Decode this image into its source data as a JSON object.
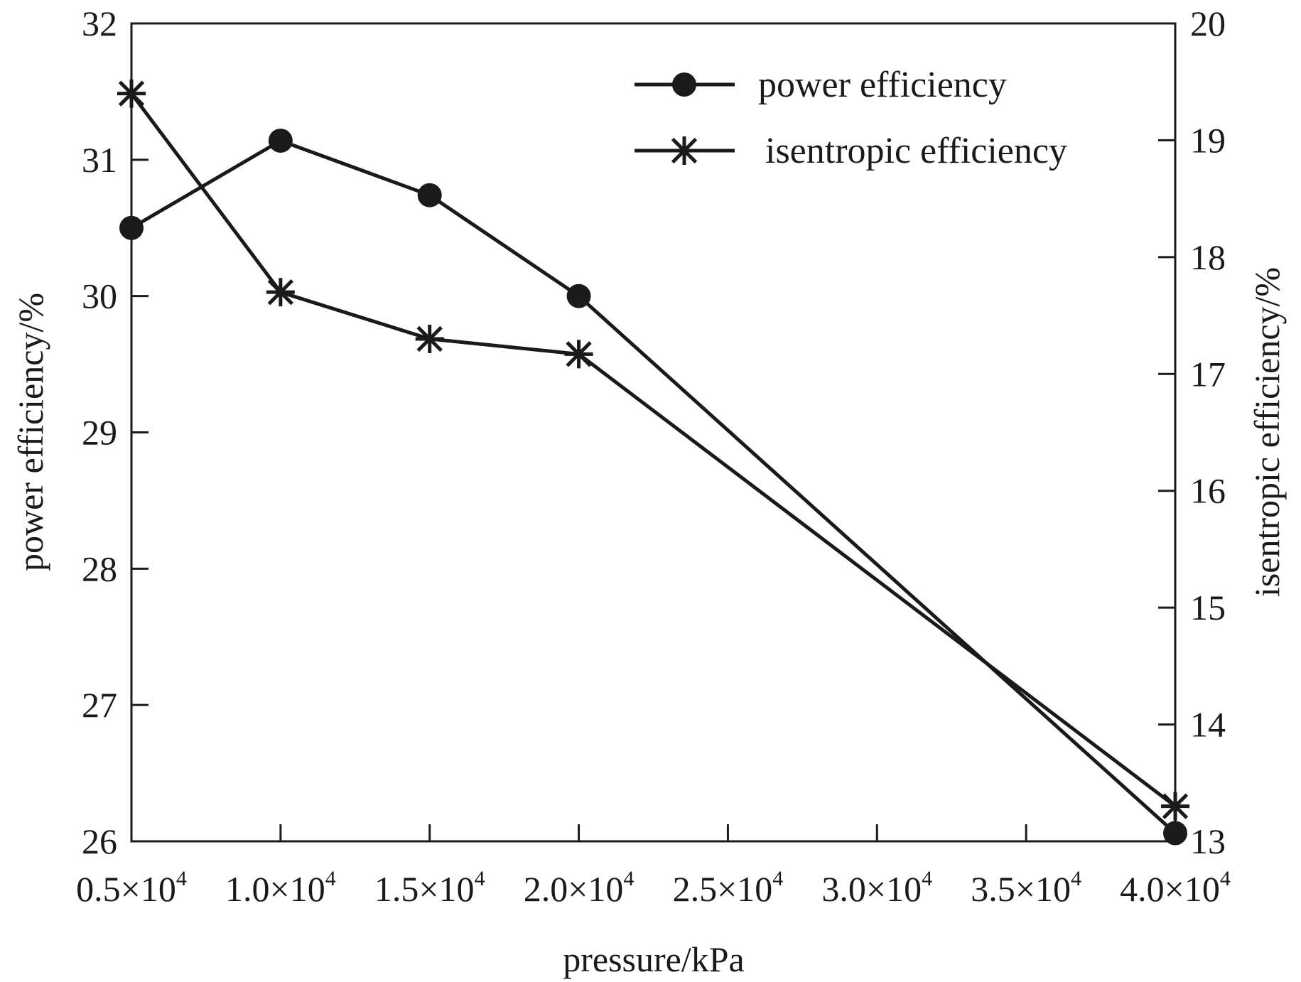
{
  "chart_data": {
    "type": "line",
    "title": "",
    "xlabel": "pressure/kPa",
    "ylabel": "power efficiency/%",
    "ylabel_right": "isentropic efficiency/%",
    "x": [
      5000,
      10000,
      15000,
      20000,
      40000
    ],
    "xlim": [
      5000,
      40000
    ],
    "xticks": [
      5000,
      10000,
      15000,
      20000,
      25000,
      30000,
      35000,
      40000
    ],
    "xtick_labels": [
      {
        "mantissa": "0.5",
        "times": "×10",
        "exp": "4"
      },
      {
        "mantissa": "1.0",
        "times": "×10",
        "exp": "4"
      },
      {
        "mantissa": "1.5",
        "times": "×10",
        "exp": "4"
      },
      {
        "mantissa": "2.0",
        "times": "×10",
        "exp": "4"
      },
      {
        "mantissa": "2.5",
        "times": "×10",
        "exp": "4"
      },
      {
        "mantissa": "3.0",
        "times": "×10",
        "exp": "4"
      },
      {
        "mantissa": "3.5",
        "times": "×10",
        "exp": "4"
      },
      {
        "mantissa": "4.0",
        "times": "×10",
        "exp": "4"
      }
    ],
    "ylim": [
      26,
      32
    ],
    "yticks": [
      26,
      27,
      28,
      29,
      30,
      31,
      32
    ],
    "ylim_right": [
      13,
      20
    ],
    "yticks_right": [
      13,
      14,
      15,
      16,
      17,
      18,
      19,
      20
    ],
    "grid": false,
    "legend_position": "top-right",
    "series": [
      {
        "name": "power efficiency",
        "axis": "left",
        "marker": "circle",
        "color": "#1a1a1a",
        "values": [
          30.5,
          31.14,
          30.74,
          30.0,
          26.06
        ]
      },
      {
        "name": "isentropic efficiency",
        "axis": "right",
        "marker": "asterisk",
        "color": "#1a1a1a",
        "values": [
          19.4,
          17.7,
          17.3,
          17.17,
          13.3
        ]
      }
    ]
  }
}
